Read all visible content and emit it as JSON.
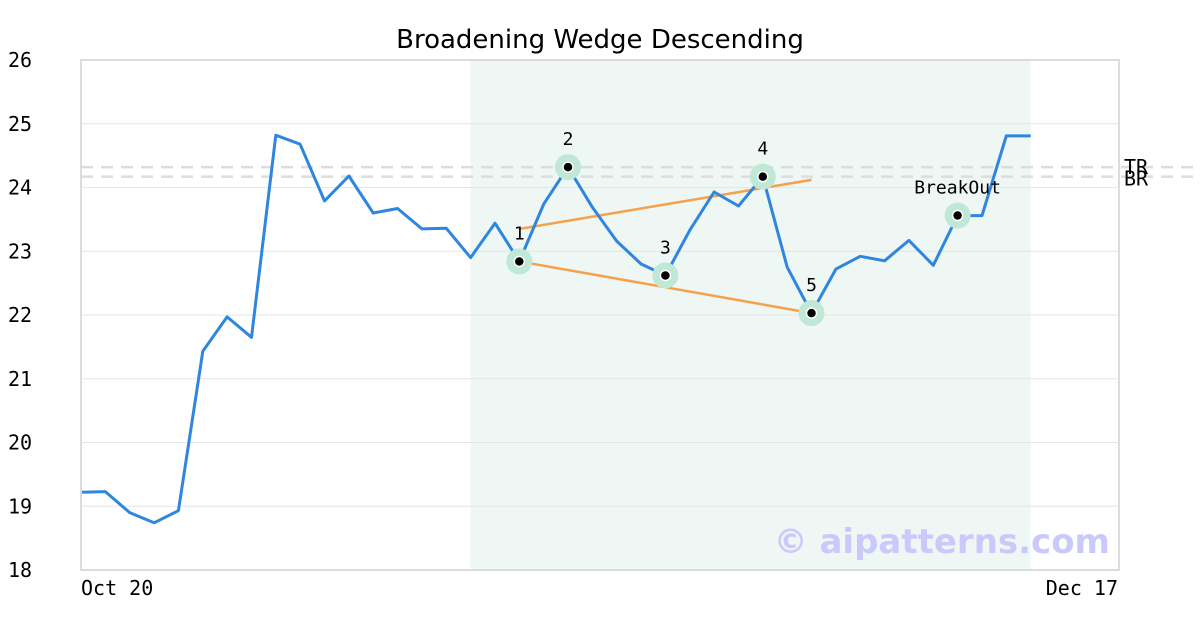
{
  "chart_data": {
    "type": "line",
    "title": "Broadening Wedge Descending",
    "ylim": [
      18,
      26
    ],
    "yticks": [
      "18",
      "19",
      "20",
      "21",
      "22",
      "23",
      "24",
      "25",
      "26"
    ],
    "xtick_labels": [
      "Oct 20",
      "Dec 17"
    ],
    "grid": "horizontal",
    "series": [
      {
        "color": "#2e86de",
        "values": [
          19.22,
          19.23,
          18.9,
          18.74,
          18.93,
          21.43,
          21.97,
          21.65,
          24.82,
          24.68,
          23.79,
          24.18,
          23.6,
          23.67,
          23.35,
          23.36,
          22.9,
          23.44,
          22.84,
          23.74,
          24.32,
          23.69,
          23.16,
          22.8,
          22.62,
          23.33,
          23.93,
          23.71,
          24.17,
          22.75,
          22.03,
          22.72,
          22.92,
          22.85,
          23.17,
          22.78,
          23.56,
          23.56,
          24.81,
          24.81
        ]
      }
    ],
    "highlight_range": [
      16,
      39
    ],
    "highlight_color": "#eef7f3",
    "trendlines": [
      {
        "color": "#f5a04a",
        "from": [
          18,
          23.35
        ],
        "to": [
          30,
          24.12
        ]
      },
      {
        "color": "#f5a04a",
        "from": [
          18,
          22.84
        ],
        "to": [
          30,
          22.03
        ]
      }
    ],
    "reference_lines": [
      {
        "label": "TR",
        "value": 24.32,
        "color": "#dddddd"
      },
      {
        "label": "BR",
        "value": 24.17,
        "color": "#dddddd"
      }
    ],
    "points": [
      {
        "label": "1",
        "index": 18,
        "value": 22.84
      },
      {
        "label": "2",
        "index": 20,
        "value": 24.32
      },
      {
        "label": "3",
        "index": 24,
        "value": 22.62
      },
      {
        "label": "4",
        "index": 28,
        "value": 24.17
      },
      {
        "label": "5",
        "index": 30,
        "value": 22.03
      },
      {
        "label": "BreakOut",
        "index": 36,
        "value": 23.56
      }
    ],
    "marker_ring_color": "#bfe8d6"
  },
  "watermark": "© aipatterns.com"
}
